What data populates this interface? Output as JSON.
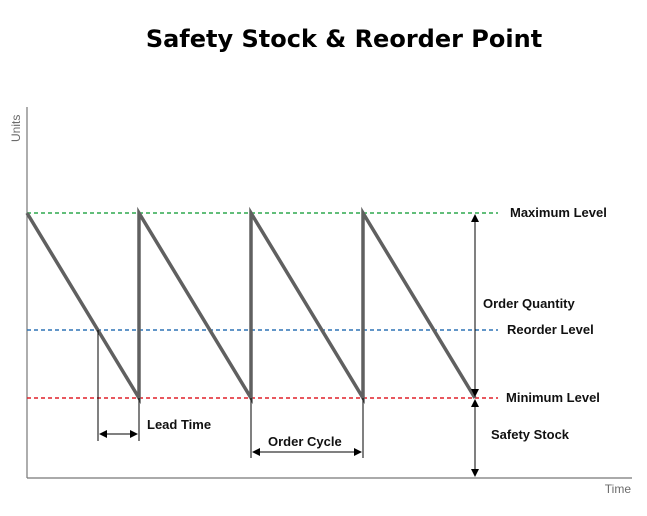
{
  "title": "Safety Stock & Reorder Point",
  "axes": {
    "ylabel": "Units",
    "xlabel": "Time"
  },
  "levels": {
    "maximum": {
      "label": "Maximum Level",
      "color": "#2fa84f"
    },
    "reorder": {
      "label": "Reorder Level",
      "color": "#2e74b5"
    },
    "minimum": {
      "label": "Minimum Level",
      "color": "#e0202a"
    }
  },
  "annotations": {
    "order_quantity": "Order Quantity",
    "safety_stock": "Safety Stock",
    "lead_time": "Lead Time",
    "order_cycle": "Order Cycle"
  },
  "colors": {
    "sawtooth": "#606060",
    "axis": "#777777",
    "arrow": "#000000"
  }
}
